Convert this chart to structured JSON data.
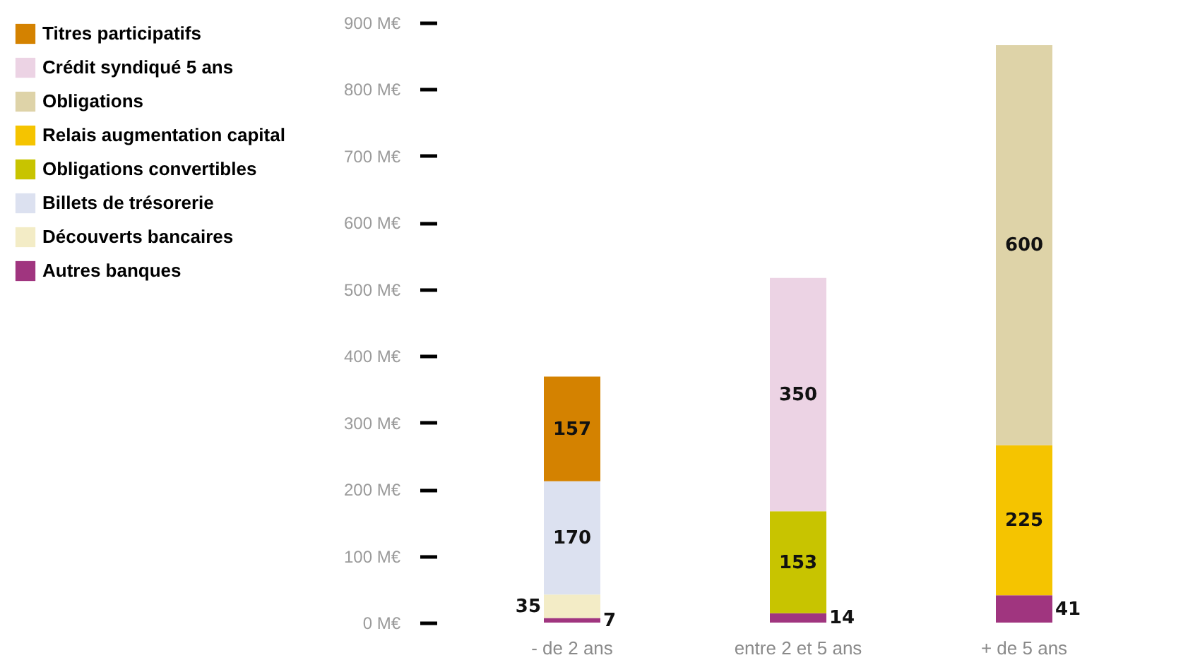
{
  "chart_data": {
    "type": "bar",
    "stacked": true,
    "categories": [
      "- de 2 ans",
      "entre 2 et 5 ans",
      "+ de 5 ans"
    ],
    "series": [
      {
        "name": "Autres banques",
        "color": "#a0357f",
        "values": [
          7,
          14,
          41
        ]
      },
      {
        "name": "Découverts bancaires",
        "color": "#f3ecc6",
        "values": [
          35,
          null,
          null
        ]
      },
      {
        "name": "Billets de trésorerie",
        "color": "#dce1f0",
        "values": [
          170,
          null,
          null
        ]
      },
      {
        "name": "Obligations convertibles",
        "color": "#c8c400",
        "values": [
          null,
          153,
          null
        ]
      },
      {
        "name": "Relais augmentation capital",
        "color": "#f5c400",
        "values": [
          null,
          null,
          225
        ]
      },
      {
        "name": "Obligations",
        "color": "#ded3a8",
        "values": [
          null,
          null,
          600
        ]
      },
      {
        "name": "Crédit syndiqué 5 ans",
        "color": "#ecd3e4",
        "values": [
          null,
          350,
          null
        ]
      },
      {
        "name": "Titres participatifs",
        "color": "#d48200",
        "values": [
          157,
          null,
          null
        ]
      }
    ],
    "ylim": [
      0,
      900
    ],
    "yticks": [
      {
        "value": 0,
        "label": "0 M€"
      },
      {
        "value": 100,
        "label": "100 M€"
      },
      {
        "value": 200,
        "label": "200 M€"
      },
      {
        "value": 300,
        "label": "300 M€"
      },
      {
        "value": 400,
        "label": "400 M€"
      },
      {
        "value": 500,
        "label": "500 M€"
      },
      {
        "value": 600,
        "label": "600 M€"
      },
      {
        "value": 700,
        "label": "700 M€"
      },
      {
        "value": 800,
        "label": "800 M€"
      },
      {
        "value": 900,
        "label": "900 M€"
      }
    ],
    "data_labels": true,
    "legend": "left",
    "grid": false
  }
}
